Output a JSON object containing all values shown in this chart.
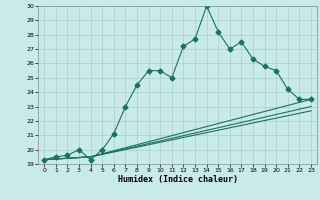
{
  "xlabel": "Humidex (Indice chaleur)",
  "ylabel": "",
  "bg_color": "#c8eae8",
  "line_color": "#1a7065",
  "grid_color": "#aacccc",
  "xlim": [
    -0.5,
    23.5
  ],
  "ylim": [
    19,
    30
  ],
  "yticks": [
    19,
    20,
    21,
    22,
    23,
    24,
    25,
    26,
    27,
    28,
    29,
    30
  ],
  "xticks": [
    0,
    1,
    2,
    3,
    4,
    5,
    6,
    7,
    8,
    9,
    10,
    11,
    12,
    13,
    14,
    15,
    16,
    17,
    18,
    19,
    20,
    21,
    22,
    23
  ],
  "series": [
    {
      "x": [
        0,
        1,
        2,
        3,
        4,
        5,
        6,
        7,
        8,
        9,
        10,
        11,
        12,
        13,
        14,
        15,
        16,
        17,
        18,
        19,
        20,
        21,
        22,
        23
      ],
      "y": [
        19.3,
        19.5,
        19.6,
        20.0,
        19.3,
        20.0,
        21.1,
        23.0,
        24.5,
        25.5,
        25.5,
        25.0,
        27.2,
        27.7,
        30.0,
        28.2,
        27.0,
        27.5,
        26.3,
        25.8,
        25.5,
        24.2,
        23.5,
        23.5
      ],
      "marker": "D",
      "markersize": 2.5
    },
    {
      "x": [
        0,
        4,
        23
      ],
      "y": [
        19.3,
        19.5,
        23.5
      ],
      "marker": null,
      "markersize": 0
    },
    {
      "x": [
        0,
        4,
        23
      ],
      "y": [
        19.3,
        19.5,
        23.0
      ],
      "marker": null,
      "markersize": 0
    },
    {
      "x": [
        0,
        4,
        23
      ],
      "y": [
        19.3,
        19.5,
        22.7
      ],
      "marker": null,
      "markersize": 0
    }
  ]
}
